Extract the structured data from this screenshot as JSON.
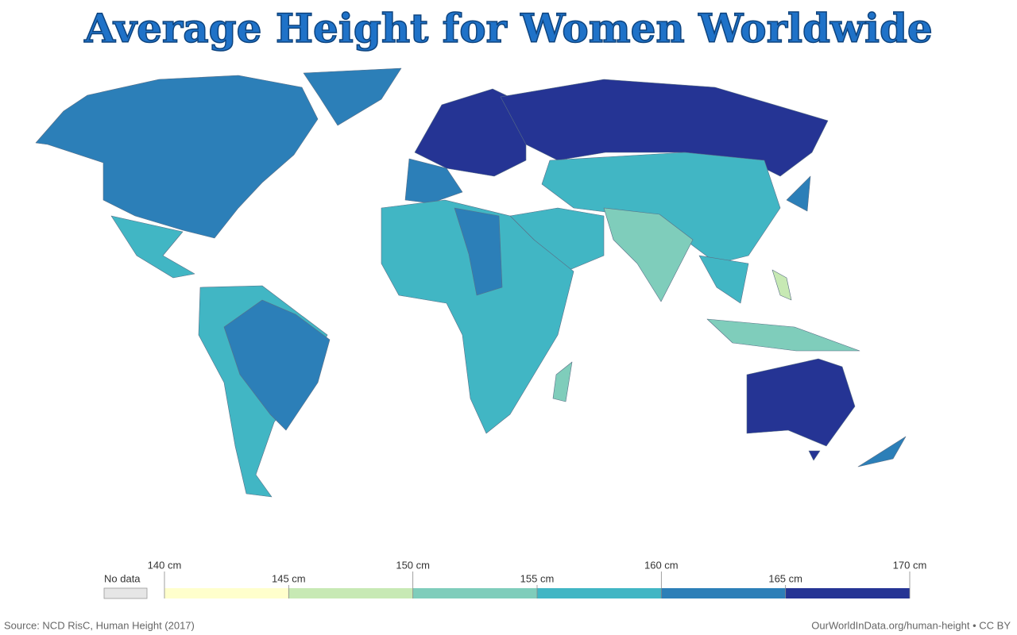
{
  "title": "Average Height for Women Worldwide",
  "legend": {
    "no_data": "No data",
    "no_data_color": "#e6e6e6",
    "ticks": [
      {
        "value": 140,
        "label": "140 cm"
      },
      {
        "value": 145,
        "label": "145 cm"
      },
      {
        "value": 150,
        "label": "150 cm"
      },
      {
        "value": 155,
        "label": "155 cm"
      },
      {
        "value": 160,
        "label": "160 cm"
      },
      {
        "value": 165,
        "label": "165 cm"
      },
      {
        "value": 170,
        "label": "170 cm"
      }
    ],
    "colors": [
      "#ffffcc",
      "#c7e9b4",
      "#7fcdbb",
      "#41b6c4",
      "#2c7fb8",
      "#253494"
    ]
  },
  "footer": {
    "source": "Source: NCD RisC, Human Height (2017)",
    "url": "OurWorldInData.org/human-height • CC BY"
  }
}
